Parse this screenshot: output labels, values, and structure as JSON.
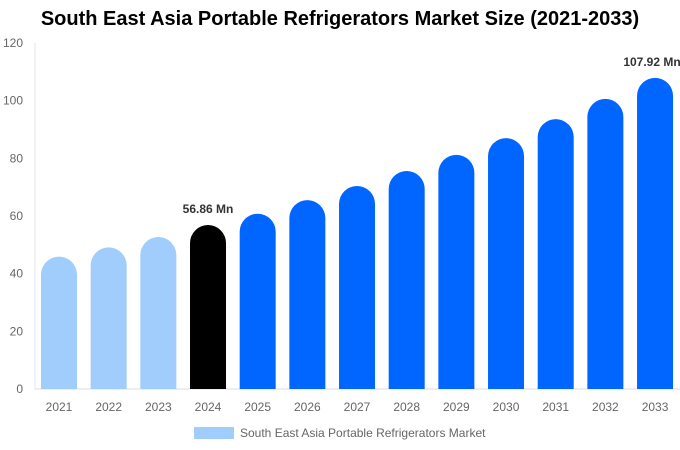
{
  "chart_data": {
    "type": "bar",
    "title": "South East Asia Portable Refrigerators Market Size (2021-2033)",
    "categories": [
      "2021",
      "2022",
      "2023",
      "2024",
      "2025",
      "2026",
      "2027",
      "2028",
      "2029",
      "2030",
      "2031",
      "2032",
      "2033"
    ],
    "series": [
      {
        "name": "South East Asia Portable Refrigerators Market",
        "values": [
          45.9,
          49.1,
          52.7,
          56.86,
          60.8,
          65.5,
          70.4,
          75.6,
          81.2,
          87.0,
          93.6,
          100.6,
          107.92
        ]
      }
    ],
    "data_labels": {
      "2024": "56.86 Mn",
      "2033": "107.92 Mn"
    },
    "ylim": [
      0,
      120
    ],
    "yticks": [
      0,
      20,
      40,
      60,
      80,
      100,
      120
    ],
    "xlabel": "",
    "ylabel": "",
    "grid": false,
    "legend": "bottom",
    "colors": {
      "historical": "#a0cdfc",
      "base_year": "#000000",
      "forecast": "#0066ff"
    }
  }
}
